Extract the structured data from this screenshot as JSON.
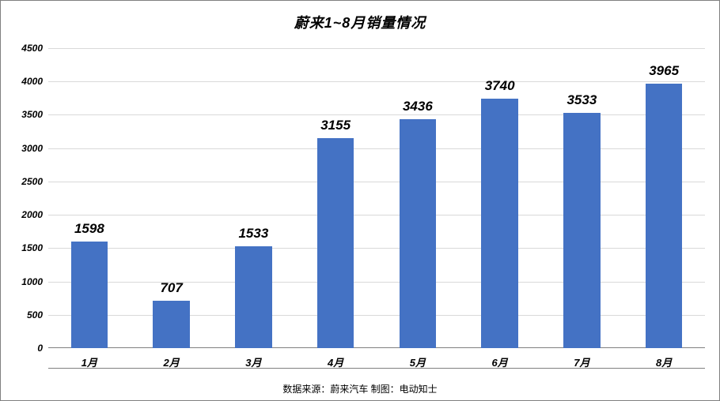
{
  "chart": {
    "type": "bar",
    "title": "蔚来1~8月销量情况",
    "title_fontsize": 18,
    "categories": [
      "1月",
      "2月",
      "3月",
      "4月",
      "5月",
      "6月",
      "7月",
      "8月"
    ],
    "values": [
      1598,
      707,
      1533,
      3155,
      3436,
      3740,
      3533,
      3965
    ],
    "bar_color": "#4472c4",
    "bar_width": 0.45,
    "ylim": [
      0,
      4500
    ],
    "ytick_step": 500,
    "yticks": [
      0,
      500,
      1000,
      1500,
      2000,
      2500,
      3000,
      3500,
      4000,
      4500
    ],
    "grid_color": "#d9d9d9",
    "axis_line_color": "#808080",
    "background_color": "#ffffff",
    "axis_label_fontsize": 13,
    "value_label_fontsize": 17,
    "tick_label_fontsize": 12,
    "footer": "数据来源：蔚来汽车  制图：电动知士",
    "footer_fontsize": 12,
    "font_weight": "900",
    "font_style": "italic"
  }
}
